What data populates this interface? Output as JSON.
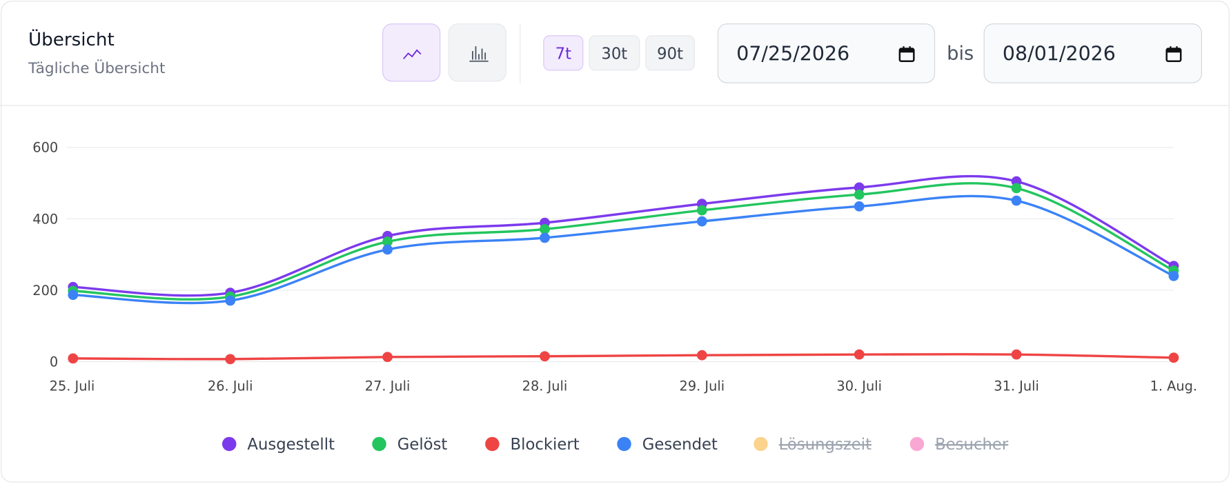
{
  "header": {
    "title": "Übersicht",
    "subtitle": "Tägliche Übersicht",
    "ranges": [
      "7t",
      "30t",
      "90t"
    ],
    "active_range": 0,
    "date_from": "07/25/2026",
    "date_separator": "bis",
    "date_to": "08/01/2026"
  },
  "chart_data": {
    "type": "line",
    "categories": [
      "25. Juli",
      "26. Juli",
      "27. Juli",
      "28. Juli",
      "29. Juli",
      "30. Juli",
      "31. Juli",
      "1. Aug."
    ],
    "series": [
      {
        "name": "Ausgestellt",
        "color": "#7c3aed",
        "values": [
          209,
          193,
          352,
          389,
          442,
          488,
          505,
          268
        ]
      },
      {
        "name": "Gelöst",
        "color": "#22c55e",
        "values": [
          198,
          182,
          336,
          371,
          424,
          468,
          486,
          255
        ]
      },
      {
        "name": "Blockiert",
        "color": "#ef4444",
        "values": [
          9,
          7,
          13,
          15,
          18,
          20,
          20,
          11
        ]
      },
      {
        "name": "Gesendet",
        "color": "#3b82f6",
        "values": [
          187,
          171,
          314,
          347,
          393,
          435,
          451,
          240
        ]
      },
      {
        "name": "Lösungszeit",
        "color": "#fcd38d",
        "hidden": true
      },
      {
        "name": "Besucher",
        "color": "#f9a8d4",
        "hidden": true
      }
    ],
    "ylim": [
      0,
      600
    ],
    "yticks": [
      0,
      200,
      400,
      600
    ],
    "grid": true,
    "legend": "bottom"
  }
}
